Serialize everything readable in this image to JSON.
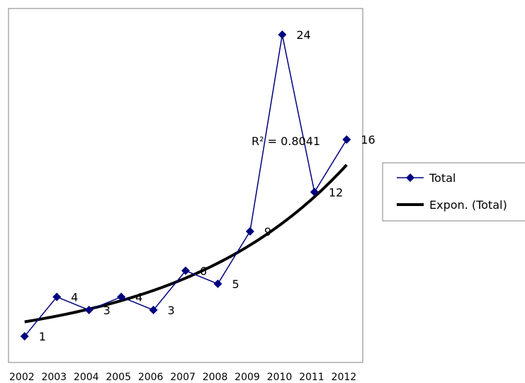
{
  "chart_data": {
    "type": "line",
    "categories": [
      "2002",
      "2003",
      "2004",
      "2005",
      "2006",
      "2007",
      "2008",
      "2009",
      "2010",
      "2011",
      "2012"
    ],
    "x_tick_labels": [
      "2002",
      "2003",
      "2004",
      "2005",
      "2006",
      "2007",
      "2008",
      "2009",
      "2010",
      "2011",
      "2012"
    ],
    "series": [
      {
        "name": "Total",
        "values": [
          1,
          4,
          3,
          4,
          3,
          6,
          5,
          9,
          24,
          12,
          16
        ],
        "color": "#000080",
        "marker": "diamond"
      },
      {
        "name": "Expon. (Total)",
        "type": "trendline-exponential",
        "color": "#000000",
        "x": [
          2002,
          2003,
          2004,
          2005,
          2006,
          2007,
          2008,
          2009,
          2010,
          2011,
          2012
        ],
        "values": [
          2.1,
          2.54,
          3.08,
          3.72,
          4.51,
          5.46,
          6.61,
          8.0,
          9.68,
          11.72,
          14.19
        ]
      }
    ],
    "data_labels": [
      "1",
      "4",
      "3",
      "4",
      "3",
      "6",
      "5",
      "9",
      "24",
      "12",
      "16"
    ],
    "annotation": "R² = 0.8041",
    "ylim": [
      -1,
      26
    ],
    "grid": false,
    "legend_position": "right",
    "legend_entries": [
      "Total",
      "Expon. (Total)"
    ],
    "title": "",
    "xlabel": "",
    "ylabel": ""
  }
}
